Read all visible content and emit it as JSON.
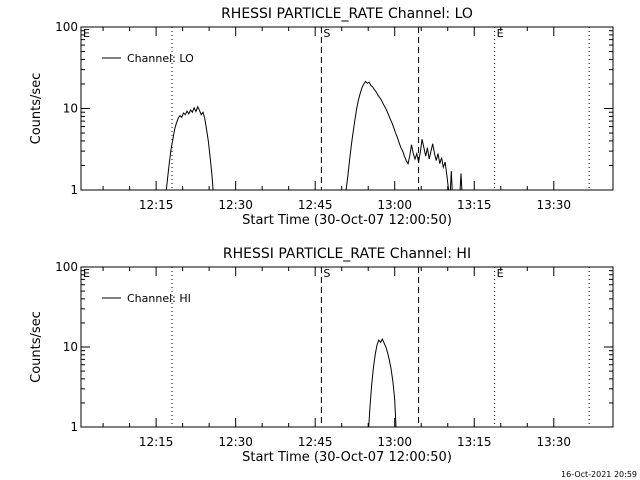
{
  "chart_data": [
    {
      "type": "line",
      "title": "RHESSI PARTICLE_RATE Channel: LO",
      "xlabel": "Start Time (30-Oct-07 12:00:50)",
      "ylabel": "Counts/sec",
      "y_scale": "log",
      "ylim": [
        1,
        100
      ],
      "xlim": [
        "12:00:50",
        "13:41:10"
      ],
      "x_ticks": [
        "12:15",
        "12:30",
        "12:45",
        "13:00",
        "13:15",
        "13:30"
      ],
      "y_ticks": [
        "1",
        "10",
        "100"
      ],
      "legend": {
        "placement": "top-left",
        "entries": [
          "Channel: LO"
        ]
      },
      "markers": [
        {
          "label": "E",
          "style": "dotted",
          "time": "12:00:50"
        },
        {
          "label": "",
          "style": "dotted",
          "time": "12:18:00"
        },
        {
          "label": "S",
          "style": "dashed",
          "time": "12:46:10"
        },
        {
          "label": "",
          "style": "dashed",
          "time": "13:04:30"
        },
        {
          "label": "E",
          "style": "dotted",
          "time": "13:18:50"
        },
        {
          "label": "",
          "style": "dotted",
          "time": "13:36:40"
        }
      ],
      "series": [
        {
          "name": "Channel: LO",
          "segments": [
            [
              [
                "12:16:55",
                1.0
              ],
              [
                "12:17:10",
                1.4
              ],
              [
                "12:17:30",
                2.2
              ],
              [
                "12:17:50",
                3.2
              ],
              [
                "12:18:10",
                4.2
              ],
              [
                "12:18:30",
                5.6
              ],
              [
                "12:18:50",
                6.6
              ],
              [
                "12:19:10",
                7.6
              ],
              [
                "12:19:30",
                8.2
              ],
              [
                "12:19:50",
                7.8
              ],
              [
                "12:20:10",
                8.8
              ],
              [
                "12:20:30",
                8.4
              ],
              [
                "12:20:50",
                9.3
              ],
              [
                "12:21:10",
                8.6
              ],
              [
                "12:21:30",
                9.6
              ],
              [
                "12:21:50",
                9.0
              ],
              [
                "12:22:10",
                10.2
              ],
              [
                "12:22:30",
                9.2
              ],
              [
                "12:22:50",
                10.5
              ],
              [
                "12:23:10",
                9.5
              ],
              [
                "12:23:30",
                8.4
              ],
              [
                "12:23:50",
                9.0
              ],
              [
                "12:24:10",
                7.6
              ],
              [
                "12:24:30",
                5.6
              ],
              [
                "12:24:50",
                4.0
              ],
              [
                "12:25:10",
                2.6
              ],
              [
                "12:25:30",
                1.6
              ],
              [
                "12:25:45",
                1.0
              ]
            ],
            [
              [
                "12:50:50",
                1.0
              ],
              [
                "12:51:10",
                1.5
              ],
              [
                "12:51:30",
                2.4
              ],
              [
                "12:51:50",
                3.6
              ],
              [
                "12:52:10",
                5.2
              ],
              [
                "12:52:30",
                7.4
              ],
              [
                "12:52:50",
                10.0
              ],
              [
                "12:53:10",
                12.8
              ],
              [
                "12:53:30",
                15.5
              ],
              [
                "12:53:50",
                18.0
              ],
              [
                "12:54:10",
                20.0
              ],
              [
                "12:54:30",
                21.5
              ],
              [
                "12:54:50",
                20.4
              ],
              [
                "12:55:10",
                21.0
              ],
              [
                "12:55:30",
                19.2
              ],
              [
                "12:55:50",
                18.4
              ],
              [
                "12:56:10",
                17.0
              ],
              [
                "12:56:30",
                16.0
              ],
              [
                "12:56:50",
                14.6
              ],
              [
                "12:57:10",
                13.6
              ],
              [
                "12:57:30",
                12.6
              ],
              [
                "12:57:50",
                11.4
              ],
              [
                "12:58:10",
                10.4
              ],
              [
                "12:58:30",
                9.4
              ],
              [
                "12:58:50",
                8.4
              ],
              [
                "12:59:10",
                7.4
              ],
              [
                "12:59:30",
                6.6
              ],
              [
                "12:59:50",
                5.8
              ],
              [
                "13:00:10",
                5.0
              ],
              [
                "13:00:30",
                4.4
              ],
              [
                "13:00:50",
                3.8
              ],
              [
                "13:01:10",
                3.3
              ],
              [
                "13:01:30",
                3.0
              ],
              [
                "13:01:50",
                2.6
              ],
              [
                "13:02:10",
                2.3
              ],
              [
                "13:02:30",
                2.1
              ],
              [
                "13:02:50",
                2.6
              ],
              [
                "13:03:10",
                3.6
              ],
              [
                "13:03:30",
                2.8
              ],
              [
                "13:03:50",
                2.4
              ],
              [
                "13:04:10",
                2.8
              ],
              [
                "13:04:30",
                2.2
              ],
              [
                "13:04:50",
                2.9
              ],
              [
                "13:05:10",
                4.2
              ],
              [
                "13:05:30",
                3.3
              ],
              [
                "13:05:50",
                2.6
              ],
              [
                "13:06:10",
                3.3
              ],
              [
                "13:06:30",
                2.4
              ],
              [
                "13:06:50",
                3.0
              ],
              [
                "13:07:10",
                3.7
              ],
              [
                "13:07:30",
                2.8
              ],
              [
                "13:07:50",
                2.3
              ],
              [
                "13:08:10",
                2.8
              ],
              [
                "13:08:30",
                2.1
              ],
              [
                "13:08:50",
                2.5
              ],
              [
                "13:09:10",
                1.9
              ],
              [
                "13:09:30",
                2.2
              ],
              [
                "13:09:50",
                1.5
              ],
              [
                "13:10:10",
                1.0
              ]
            ],
            [
              [
                "13:10:30",
                1.0
              ],
              [
                "13:10:40",
                1.7
              ],
              [
                "13:10:50",
                1.0
              ]
            ],
            [
              [
                "13:12:20",
                1.0
              ],
              [
                "13:12:30",
                1.6
              ],
              [
                "13:12:40",
                1.0
              ]
            ]
          ]
        }
      ]
    },
    {
      "type": "line",
      "title": "RHESSI PARTICLE_RATE Channel: HI",
      "xlabel": "Start Time (30-Oct-07 12:00:50)",
      "ylabel": "Counts/sec",
      "y_scale": "log",
      "ylim": [
        1,
        100
      ],
      "xlim": [
        "12:00:50",
        "13:41:10"
      ],
      "x_ticks": [
        "12:15",
        "12:30",
        "12:45",
        "13:00",
        "13:15",
        "13:30"
      ],
      "y_ticks": [
        "1",
        "10",
        "100"
      ],
      "legend": {
        "placement": "top-left",
        "entries": [
          "Channel: HI"
        ]
      },
      "markers": [
        {
          "label": "E",
          "style": "dotted",
          "time": "12:00:50"
        },
        {
          "label": "",
          "style": "dotted",
          "time": "12:18:00"
        },
        {
          "label": "S",
          "style": "dashed",
          "time": "12:46:10"
        },
        {
          "label": "",
          "style": "dashed",
          "time": "13:04:30"
        },
        {
          "label": "E",
          "style": "dotted",
          "time": "13:18:50"
        },
        {
          "label": "",
          "style": "dotted",
          "time": "13:36:40"
        }
      ],
      "series": [
        {
          "name": "Channel: HI",
          "segments": [
            [
              [
                "12:55:05",
                1.0
              ],
              [
                "12:55:20",
                1.8
              ],
              [
                "12:55:40",
                3.4
              ],
              [
                "12:56:00",
                5.6
              ],
              [
                "12:56:20",
                8.2
              ],
              [
                "12:56:40",
                10.6
              ],
              [
                "12:57:00",
                12.2
              ],
              [
                "12:57:20",
                11.4
              ],
              [
                "12:57:40",
                12.6
              ],
              [
                "12:58:00",
                11.2
              ],
              [
                "12:58:20",
                10.0
              ],
              [
                "12:58:40",
                8.4
              ],
              [
                "12:59:00",
                6.8
              ],
              [
                "12:59:20",
                5.2
              ],
              [
                "12:59:40",
                3.6
              ],
              [
                "13:00:00",
                2.2
              ],
              [
                "13:00:15",
                1.0
              ]
            ]
          ]
        }
      ]
    }
  ],
  "footer": {
    "timestamp": "16-Oct-2021 20:59"
  }
}
